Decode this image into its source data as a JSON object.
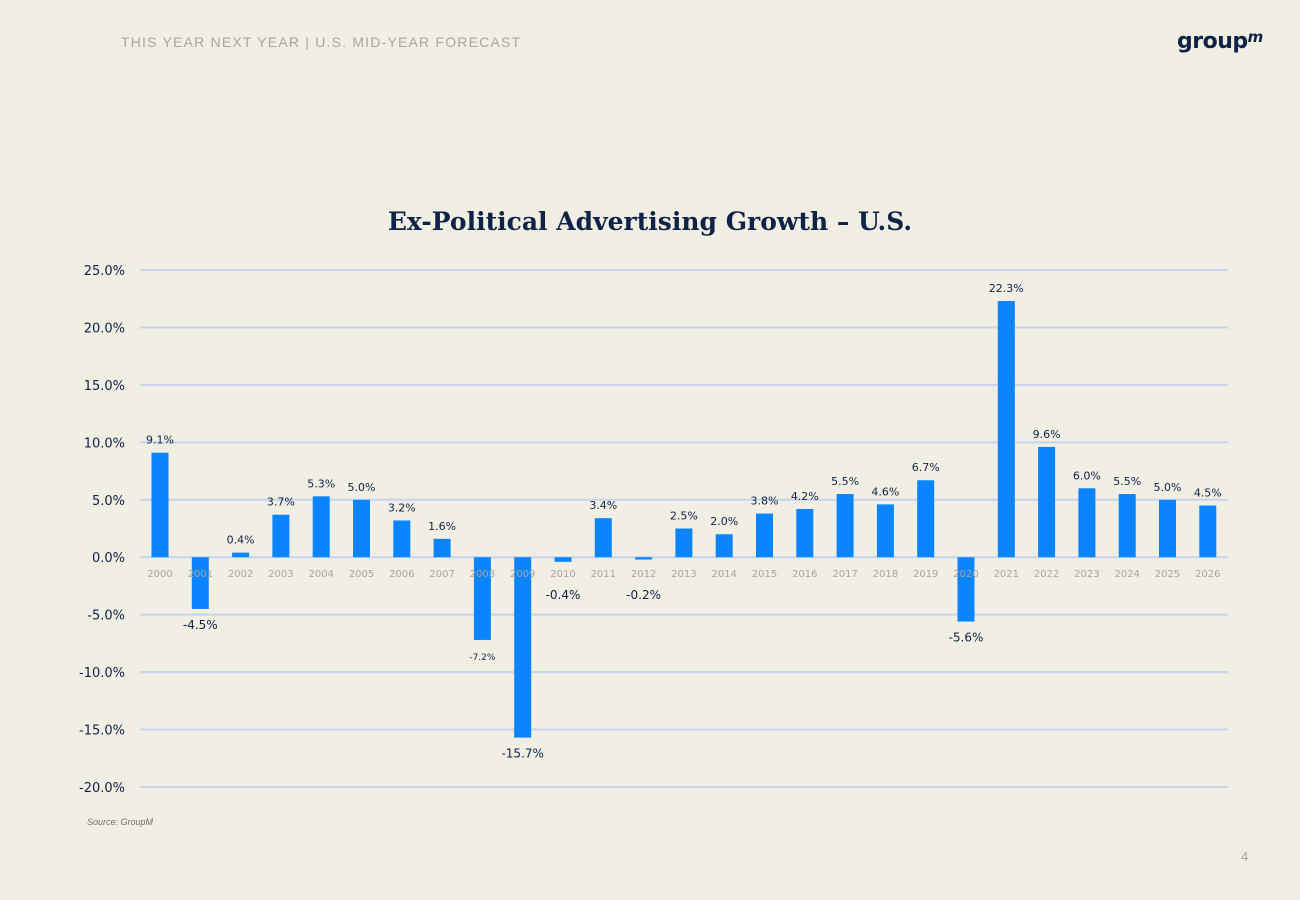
{
  "header": {
    "title": "THIS YEAR NEXT YEAR | U.S. MID-YEAR FORECAST",
    "logo_text": "group",
    "logo_suffix": "m"
  },
  "footer": {
    "source": "Source: GroupM",
    "page_number": "4"
  },
  "colors": {
    "bar": "#0a84ff",
    "gridline": "#c3d6ee",
    "label": "#0d2347",
    "tick": "#a5a5a3",
    "background": "#f1eee4"
  },
  "chart_data": {
    "type": "bar",
    "title": "Ex-Political Advertising Growth – U.S.",
    "xlabel": "",
    "ylabel": "",
    "ylim": [
      -20,
      25
    ],
    "yticks": [
      25,
      20,
      15,
      10,
      5,
      0,
      -5,
      -10,
      -15,
      -20
    ],
    "ytick_labels": [
      "25.0%",
      "20.0%",
      "15.0%",
      "10.0%",
      "5.0%",
      "0.0%",
      "-5.0%",
      "-10.0%",
      "-15.0%",
      "-20.0%"
    ],
    "grid": true,
    "categories": [
      "2000",
      "2001",
      "2002",
      "2003",
      "2004",
      "2005",
      "2006",
      "2007",
      "2008",
      "2009",
      "2010",
      "2011",
      "2012",
      "2013",
      "2014",
      "2015",
      "2016",
      "2017",
      "2018",
      "2019",
      "2020",
      "2021",
      "2022",
      "2023",
      "2024",
      "2025",
      "2026"
    ],
    "values": [
      9.1,
      -4.5,
      0.4,
      3.7,
      5.3,
      5.0,
      3.2,
      1.6,
      -7.2,
      -15.7,
      -0.4,
      3.4,
      -0.2,
      2.5,
      2.0,
      3.8,
      4.2,
      5.5,
      4.6,
      6.7,
      -5.6,
      22.3,
      9.6,
      6.0,
      5.5,
      5.0,
      4.5
    ],
    "data_labels": [
      "9.1%",
      "-4.5%",
      "0.4%",
      "3.7%",
      "5.3%",
      "5.0%",
      "3.2%",
      "1.6%",
      "-7.2%",
      "-15.7%",
      "-0.4%",
      "3.4%",
      "-0.2%",
      "2.5%",
      "2.0%",
      "3.8%",
      "4.2%",
      "5.5%",
      "4.6%",
      "6.7%",
      "-5.6%",
      "22.3%",
      "9.6%",
      "6.0%",
      "5.5%",
      "5.0%",
      "4.5%"
    ]
  }
}
